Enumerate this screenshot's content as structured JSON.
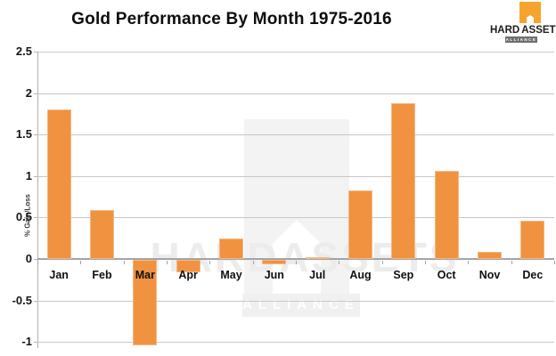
{
  "colors": {
    "bar_orange": "#F0923F",
    "logo_orange": "#F7A42F",
    "gridline": "#C7C7C7",
    "axis": "#A4A4A4",
    "title_text": "#0D0D0D"
  },
  "logo": {
    "word1": "HARD",
    "word2": "ASSETS",
    "banner": "ALLIANCE"
  },
  "watermark": {
    "brand": "HARDASSETS",
    "banner": "ALLIANCE"
  },
  "chart_data": {
    "type": "bar",
    "title": "Gold Performance By Month 1975-2016",
    "categories": [
      "Jan",
      "Feb",
      "Mar",
      "Apr",
      "May",
      "Jun",
      "Jul",
      "Aug",
      "Sep",
      "Oct",
      "Nov",
      "Dec"
    ],
    "values": [
      1.8,
      0.59,
      -1.03,
      -0.15,
      0.25,
      -0.05,
      0.02,
      0.83,
      1.88,
      1.06,
      0.09,
      0.46
    ],
    "xlabel": "",
    "ylabel": "% Gain/Loss",
    "ylim": [
      -1,
      2.5
    ],
    "yticks": [
      2.5,
      2,
      1.5,
      1,
      0.5,
      0,
      -0.5,
      -1
    ],
    "ytick_labels": [
      "2.5",
      "2",
      "1.5",
      "1",
      "0.5",
      "0",
      "-0.5",
      "-1"
    ],
    "grid": true,
    "legend": false,
    "bar_color": "#F0923F"
  }
}
